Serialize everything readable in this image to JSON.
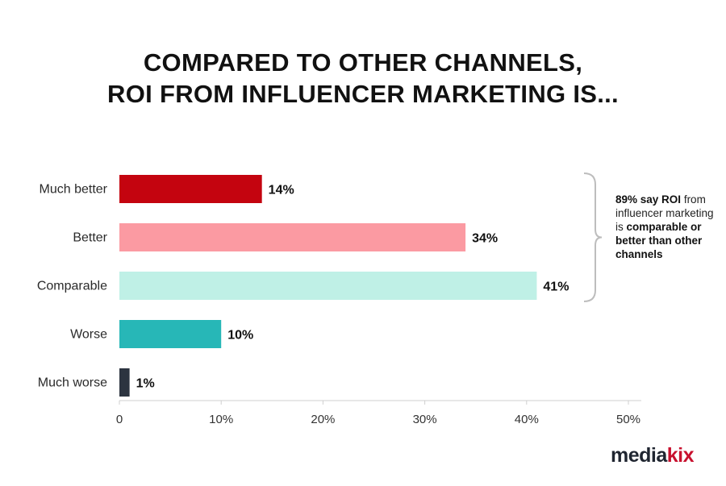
{
  "title": {
    "line1": "COMPARED TO OTHER CHANNELS,",
    "line2": "ROI FROM INFLUENCER MARKETING IS..."
  },
  "chart_data": {
    "type": "bar",
    "orientation": "horizontal",
    "categories": [
      "Much better",
      "Better",
      "Comparable",
      "Worse",
      "Much worse"
    ],
    "values": [
      14,
      34,
      41,
      10,
      1
    ],
    "data_labels": [
      "14%",
      "34%",
      "41%",
      "10%",
      "1%"
    ],
    "colors": [
      "#c4040f",
      "#fb9aa2",
      "#bff0e6",
      "#27b7b7",
      "#2c3440"
    ],
    "xlim": [
      0,
      50
    ],
    "xticks": [
      0,
      10,
      20,
      30,
      40,
      50
    ],
    "xtick_labels": [
      "0",
      "10%",
      "20%",
      "30%",
      "40%",
      "50%"
    ],
    "grid": false
  },
  "annotation": {
    "bracket_covers": [
      "Much better",
      "Better",
      "Comparable"
    ],
    "part1": "89% say ",
    "part2": "ROI",
    "part3": " from influencer marketing is ",
    "part4": "comparable or better than other channels"
  },
  "brand": {
    "part1": "media",
    "part2": "kix"
  }
}
